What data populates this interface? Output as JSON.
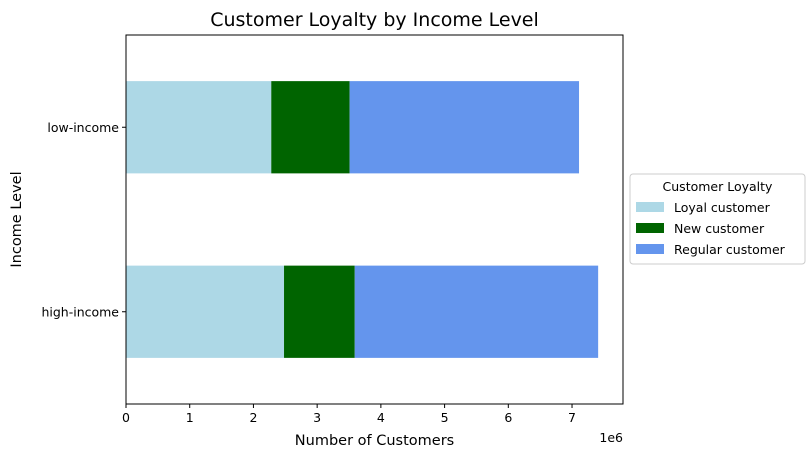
{
  "chart_data": {
    "type": "bar",
    "orientation": "horizontal",
    "stacked": true,
    "title": "Customer Loyalty by Income Level",
    "xlabel": "Number of Customers",
    "ylabel": "Income Level",
    "x_multiplier_label": "1e6",
    "categories": [
      "high-income",
      "low-income"
    ],
    "xlim": [
      0,
      7800000
    ],
    "xticks": [
      0,
      1000000,
      2000000,
      3000000,
      4000000,
      5000000,
      6000000,
      7000000
    ],
    "xtick_labels": [
      "0",
      "1",
      "2",
      "3",
      "4",
      "5",
      "6",
      "7"
    ],
    "series": [
      {
        "name": "Loyal customer",
        "color": "#add8e6",
        "values": [
          2480000,
          2280000
        ]
      },
      {
        "name": "New customer",
        "color": "#006400",
        "values": [
          1110000,
          1230000
        ]
      },
      {
        "name": "Regular customer",
        "color": "#6495ed",
        "values": [
          3820000,
          3600000
        ]
      }
    ],
    "legend": {
      "title": "Customer Loyalty",
      "position": "center-right, outside plot"
    },
    "grid": false
  }
}
